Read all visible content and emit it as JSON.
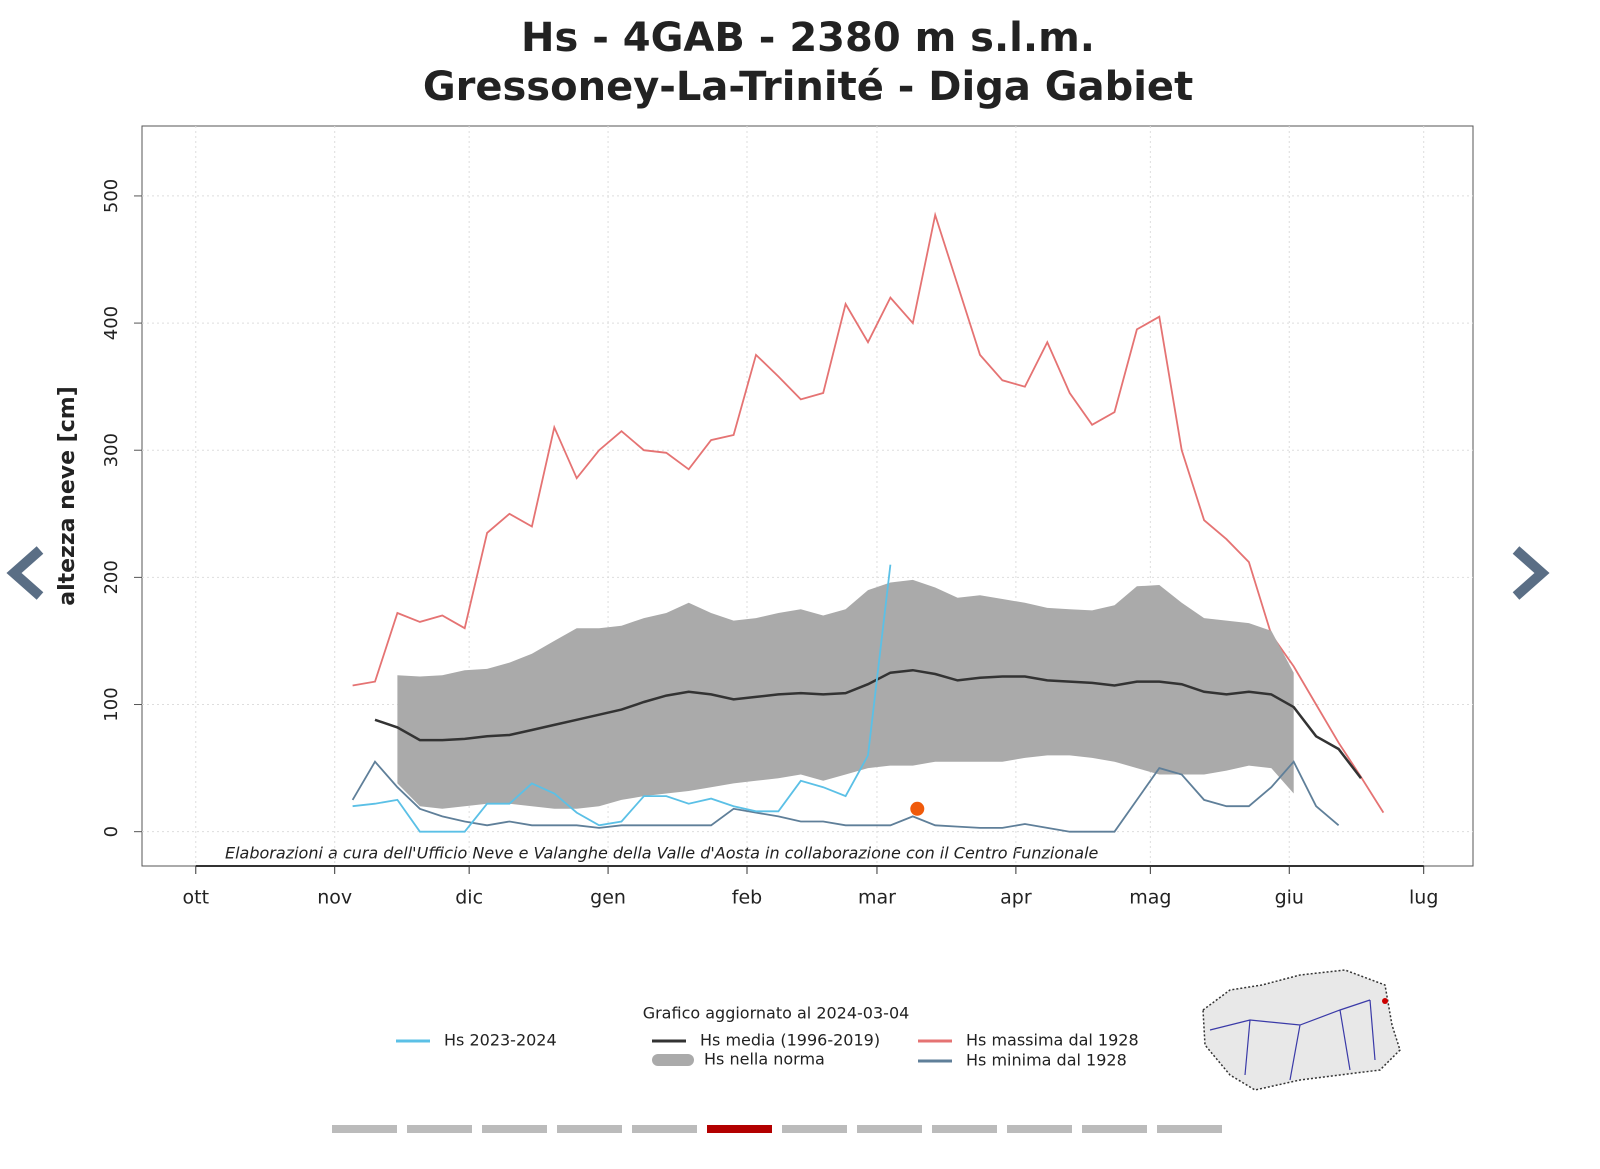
{
  "chart_data": {
    "type": "line",
    "title": "Hs - 4GAB - 2380 m s.l.m.",
    "subtitle": "Gressoney-La-Trinité - Diga Gabiet",
    "y_label": "altezza neve [cm]",
    "caption": "Elaborazioni a cura dell'Ufficio Neve e Valanghe della Valle d'Aosta in collaborazione con il Centro Funzionale",
    "legend_title": "Grafico aggiornato al 2024-03-04",
    "xlim": [
      -12,
      285
    ],
    "ylim": [
      -27,
      555
    ],
    "xticks": [
      {
        "value": 0,
        "label": "ott"
      },
      {
        "value": 31,
        "label": "nov"
      },
      {
        "value": 61,
        "label": "dic"
      },
      {
        "value": 92,
        "label": "gen"
      },
      {
        "value": 123,
        "label": "feb"
      },
      {
        "value": 152,
        "label": "mar"
      },
      {
        "value": 183,
        "label": "apr"
      },
      {
        "value": 213,
        "label": "mag"
      },
      {
        "value": 244,
        "label": "giu"
      },
      {
        "value": 274,
        "label": "lug"
      }
    ],
    "yticks": [
      0,
      100,
      200,
      300,
      400,
      500
    ],
    "grid": true,
    "x": [
      30,
      35,
      40,
      45,
      50,
      55,
      60,
      65,
      70,
      75,
      80,
      85,
      90,
      95,
      100,
      105,
      110,
      115,
      120,
      125,
      130,
      135,
      140,
      145,
      150,
      155,
      160,
      165,
      170,
      175,
      180,
      185,
      190,
      195,
      200,
      205,
      210,
      215,
      220,
      225,
      230,
      235,
      240,
      245,
      250,
      255,
      260,
      265
    ],
    "series": [
      {
        "name": "Hs massima dal 1928",
        "color": "#e57373",
        "values": [
          null,
          115,
          118,
          172,
          165,
          170,
          160,
          235,
          250,
          240,
          318,
          278,
          300,
          315,
          300,
          298,
          285,
          308,
          312,
          375,
          358,
          340,
          345,
          415,
          385,
          420,
          400,
          485,
          430,
          375,
          355,
          350,
          385,
          345,
          320,
          330,
          395,
          405,
          300,
          245,
          230,
          212,
          155,
          130,
          100,
          70,
          43,
          15
        ]
      },
      {
        "name": "Hs nella norma",
        "color": "#aaaaaa",
        "band": true,
        "low": [
          null,
          null,
          null,
          38,
          20,
          18,
          20,
          22,
          22,
          20,
          18,
          18,
          20,
          25,
          28,
          30,
          32,
          35,
          38,
          40,
          42,
          45,
          40,
          45,
          50,
          52,
          52,
          55,
          55,
          55,
          55,
          58,
          60,
          60,
          58,
          55,
          50,
          45,
          45,
          45,
          48,
          52,
          50,
          30,
          null,
          null,
          null,
          null
        ],
        "high": [
          null,
          null,
          null,
          123,
          122,
          123,
          127,
          128,
          133,
          140,
          150,
          160,
          160,
          162,
          168,
          172,
          180,
          172,
          166,
          168,
          172,
          175,
          170,
          175,
          190,
          196,
          198,
          192,
          184,
          186,
          183,
          180,
          176,
          175,
          174,
          178,
          193,
          194,
          180,
          168,
          166,
          164,
          158,
          125,
          null,
          null,
          null,
          null
        ]
      },
      {
        "name": "Hs media (1996-2019)",
        "color": "#333333",
        "values": [
          null,
          null,
          88,
          82,
          72,
          72,
          73,
          75,
          76,
          80,
          84,
          88,
          92,
          96,
          102,
          107,
          110,
          108,
          104,
          106,
          108,
          109,
          108,
          109,
          116,
          125,
          127,
          124,
          119,
          121,
          122,
          122,
          119,
          118,
          117,
          115,
          118,
          118,
          116,
          110,
          108,
          110,
          108,
          98,
          75,
          65,
          42,
          null
        ]
      },
      {
        "name": "Hs minima dal 1928",
        "color": "#5f7f99",
        "values": [
          null,
          25,
          55,
          35,
          18,
          12,
          8,
          5,
          8,
          5,
          5,
          5,
          3,
          5,
          5,
          5,
          5,
          5,
          18,
          15,
          12,
          8,
          8,
          5,
          5,
          5,
          12,
          5,
          4,
          3,
          3,
          6,
          3,
          0,
          0,
          0,
          25,
          50,
          45,
          25,
          20,
          20,
          35,
          55,
          20,
          5,
          null,
          null
        ]
      },
      {
        "name": "Hs 2023-2024",
        "color": "#5bc0e6",
        "values": [
          null,
          20,
          22,
          25,
          0,
          0,
          0,
          22,
          22,
          38,
          30,
          15,
          5,
          8,
          28,
          28,
          22,
          26,
          20,
          16,
          16,
          40,
          35,
          28,
          60,
          210,
          null,
          null,
          null,
          null,
          null,
          null,
          null,
          null,
          null,
          null,
          null,
          null,
          null,
          null,
          null,
          null,
          null,
          null,
          null,
          null,
          null,
          null
        ]
      }
    ],
    "point": {
      "x": 161,
      "value": 18,
      "color": "#f05a0a"
    }
  }
}
